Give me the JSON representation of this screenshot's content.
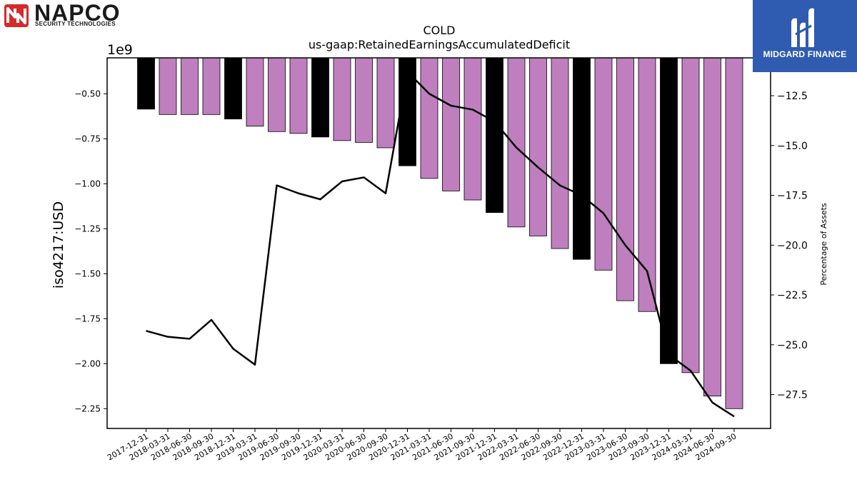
{
  "logos": {
    "left": {
      "name": "NAPCO",
      "tagline": "SECURITY TECHNOLOGIES",
      "mark_color": "#d42a2a"
    },
    "right": {
      "name": "MIDGARD FINANCE",
      "background": "#2f5bb0"
    }
  },
  "chart_data": {
    "type": "bar",
    "title": "COLD",
    "subtitle": "us-gaap:RetainedEarningsAccumulatedDeficit",
    "ylabel": "iso4217:USD",
    "y_offset_label": "1e9",
    "y2label": "Percentage of Assets",
    "ylim": [
      -2.36,
      -0.3
    ],
    "y2lim": [
      -29.2,
      -10.6
    ],
    "y_ticks": [
      -0.5,
      -0.75,
      -1.0,
      -1.25,
      -1.5,
      -1.75,
      -2.0,
      -2.25
    ],
    "y_tick_labels": [
      "−0.50",
      "−0.75",
      "−1.00",
      "−1.25",
      "−1.50",
      "−1.75",
      "−2.00",
      "−2.25"
    ],
    "y2_ticks": [
      -12.5,
      -15.0,
      -17.5,
      -20.0,
      -22.5,
      -25.0,
      -27.5
    ],
    "y2_tick_labels": [
      "−12.5",
      "−15.0",
      "−17.5",
      "−20.0",
      "−22.5",
      "−25.0",
      "−27.5"
    ],
    "categories": [
      "2017-12-31",
      "2018-03-31",
      "2018-06-30",
      "2018-09-30",
      "2018-12-31",
      "2019-03-31",
      "2019-06-30",
      "2019-09-30",
      "2019-12-31",
      "2020-03-31",
      "2020-06-30",
      "2020-09-30",
      "2020-12-31",
      "2021-03-31",
      "2021-06-30",
      "2021-09-30",
      "2021-12-31",
      "2022-03-31",
      "2022-06-30",
      "2022-09-30",
      "2022-12-31",
      "2023-03-31",
      "2023-06-30",
      "2023-09-30",
      "2023-12-31",
      "2024-03-31",
      "2024-06-30",
      "2024-09-30"
    ],
    "series": [
      {
        "kind": "bar",
        "values": [
          -0.585,
          -0.615,
          -0.615,
          -0.615,
          -0.64,
          -0.68,
          -0.71,
          -0.72,
          -0.74,
          -0.76,
          -0.77,
          -0.8,
          -0.9,
          -0.97,
          -1.04,
          -1.09,
          -1.16,
          -1.24,
          -1.29,
          -1.36,
          -1.42,
          -1.48,
          -1.65,
          -1.71,
          -2.0,
          -2.05,
          -2.18,
          -2.25
        ],
        "colors": [
          "#000000",
          "#bf7fbf",
          "#bf7fbf",
          "#bf7fbf",
          "#000000",
          "#bf7fbf",
          "#bf7fbf",
          "#bf7fbf",
          "#000000",
          "#bf7fbf",
          "#bf7fbf",
          "#bf7fbf",
          "#000000",
          "#bf7fbf",
          "#bf7fbf",
          "#bf7fbf",
          "#000000",
          "#bf7fbf",
          "#bf7fbf",
          "#bf7fbf",
          "#000000",
          "#bf7fbf",
          "#bf7fbf",
          "#bf7fbf",
          "#000000",
          "#bf7fbf",
          "#bf7fbf",
          "#bf7fbf"
        ]
      },
      {
        "kind": "line",
        "axis": "right",
        "color": "#000000",
        "values": [
          -24.3,
          -24.6,
          -24.7,
          -23.75,
          -25.2,
          -26.0,
          -17.0,
          -17.4,
          -17.7,
          -16.8,
          -16.6,
          -17.4,
          -11.3,
          -12.4,
          -13.0,
          -13.2,
          -13.8,
          -15.1,
          -16.1,
          -17.0,
          -17.5,
          -18.4,
          -20.0,
          -21.3,
          -25.5,
          -26.3,
          -27.9,
          -28.6
        ]
      }
    ],
    "bar_accent": "#000000",
    "bar_default": "#bf7fbf",
    "grid": false
  }
}
